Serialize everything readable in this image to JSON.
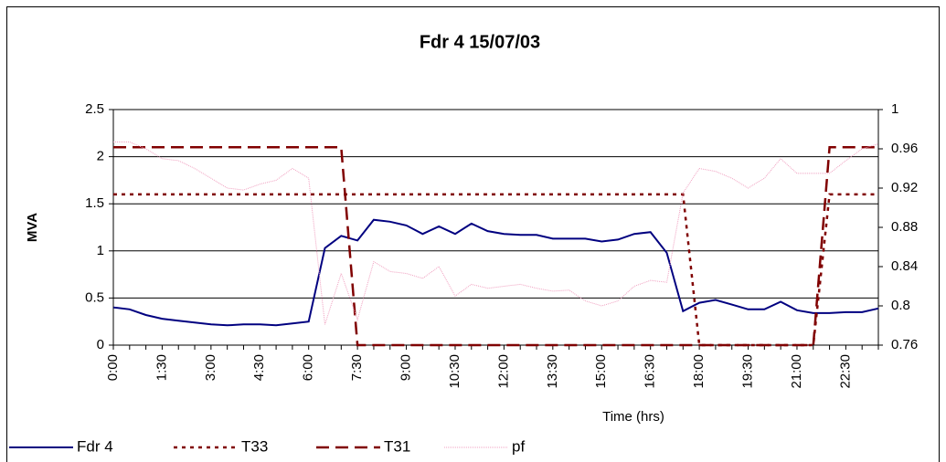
{
  "chart_data": {
    "type": "line",
    "title": "Fdr 4 15/07/03",
    "x_label": "Time (hrs)",
    "y_label": "MVA",
    "categories": [
      "0:00",
      null,
      null,
      "1:30",
      null,
      null,
      "3:00",
      null,
      null,
      "4:30",
      null,
      null,
      "6:00",
      null,
      null,
      "7:30",
      null,
      null,
      "9:00",
      null,
      null,
      "10:30",
      null,
      null,
      "12:00",
      null,
      null,
      "13:30",
      null,
      null,
      "15:00",
      null,
      null,
      "16:30",
      null,
      null,
      "18:00",
      null,
      null,
      "19:30",
      null,
      null,
      "21:00",
      null,
      null,
      "22:30",
      null,
      null
    ],
    "series": [
      {
        "name": "Fdr 4",
        "color": "#000080",
        "dash": "solid",
        "values": [
          0.4,
          0.38,
          0.32,
          0.28,
          0.26,
          0.24,
          0.22,
          0.21,
          0.22,
          0.22,
          0.21,
          0.23,
          0.25,
          1.03,
          1.16,
          1.11,
          1.33,
          1.31,
          1.27,
          1.18,
          1.26,
          1.18,
          1.29,
          1.21,
          1.18,
          1.17,
          1.17,
          1.13,
          1.13,
          1.13,
          1.1,
          1.12,
          1.18,
          1.2,
          0.98,
          0.36,
          0.45,
          0.48,
          0.43,
          0.38,
          0.38,
          0.46,
          0.37,
          0.34,
          0.34,
          0.35,
          0.35,
          0.39
        ]
      },
      {
        "name": "T33",
        "color": "#800000",
        "dash": "dotted",
        "values": [
          1.6,
          1.6,
          1.6,
          1.6,
          1.6,
          1.6,
          1.6,
          1.6,
          1.6,
          1.6,
          1.6,
          1.6,
          1.6,
          1.6,
          1.6,
          1.6,
          1.6,
          1.6,
          1.6,
          1.6,
          1.6,
          1.6,
          1.6,
          1.6,
          1.6,
          1.6,
          1.6,
          1.6,
          1.6,
          1.6,
          1.6,
          1.6,
          1.6,
          1.6,
          1.6,
          1.6,
          0,
          0,
          0,
          0,
          0,
          0,
          0,
          0,
          1.6,
          1.6,
          1.6,
          1.6
        ]
      },
      {
        "name": "T31",
        "color": "#800000",
        "dash": "dashed",
        "values": [
          2.1,
          2.1,
          2.1,
          2.1,
          2.1,
          2.1,
          2.1,
          2.1,
          2.1,
          2.1,
          2.1,
          2.1,
          2.1,
          2.1,
          2.1,
          0,
          0,
          0,
          0,
          0,
          0,
          0,
          0,
          0,
          0,
          0,
          0,
          0,
          0,
          0,
          0,
          0,
          0,
          0,
          0,
          0,
          0,
          0,
          0,
          0,
          0,
          0,
          0,
          0,
          2.1,
          2.1,
          2.1,
          2.1
        ]
      },
      {
        "name": "pf",
        "color": "#f0a0c0",
        "dash": "thin",
        "axis": "y2",
        "values": [
          0.967,
          0.967,
          0.96,
          0.95,
          0.948,
          0.94,
          0.93,
          0.92,
          0.918,
          0.924,
          0.928,
          0.94,
          0.93,
          0.781,
          0.833,
          0.786,
          0.845,
          0.835,
          0.833,
          0.828,
          0.84,
          0.81,
          0.822,
          0.818,
          0.82,
          0.822,
          0.818,
          0.815,
          0.816,
          0.805,
          0.8,
          0.805,
          0.82,
          0.826,
          0.824,
          0.915,
          0.94,
          0.937,
          0.93,
          0.92,
          0.93,
          0.95,
          0.935,
          0.935,
          0.935,
          0.948,
          0.96,
          0.965
        ]
      }
    ],
    "ylim": [
      0,
      2.5
    ],
    "yticks": [
      0,
      0.5,
      1,
      1.5,
      2,
      2.5
    ],
    "y2lim": [
      0.76,
      1
    ],
    "y2ticks": [
      0.76,
      0.8,
      0.84,
      0.88,
      0.92,
      0.96,
      1
    ],
    "grid": true,
    "legend": "bottom"
  }
}
